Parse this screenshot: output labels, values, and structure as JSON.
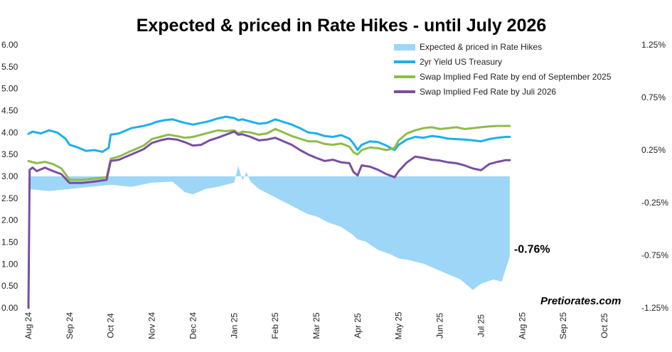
{
  "chart_data": {
    "type": "line",
    "title": "Expected & priced in Rate Hikes - until July 2026",
    "x_ticks": [
      "Aug 24",
      "Sep 24",
      "Oct 24",
      "Nov 24",
      "Dec 24",
      "Jan 25",
      "Feb 25",
      "Mar 25",
      "Apr 25",
      "May 25",
      "Jun 25",
      "Jul 25",
      "Aug 25",
      "Sep 25",
      "Oct 25"
    ],
    "y_left_ticks": [
      "6.00",
      "5.50",
      "5.00",
      "4.50",
      "4.00",
      "3.50",
      "3.00",
      "2.50",
      "2.00",
      "1.50",
      "1.00",
      "0.50",
      "0.00"
    ],
    "y_left_range": [
      0,
      6
    ],
    "y_right_ticks": [
      "1.25%",
      "0.75%",
      "0.25%",
      "-0.25%",
      "-0.75%",
      "-1.25%"
    ],
    "y_right_range": [
      -1.25,
      1.25
    ],
    "x_index_range": [
      0,
      14
    ],
    "legend": [
      {
        "name": "Expected & priced in Rate Hikes",
        "color": "#9dd6f7",
        "kind": "area"
      },
      {
        "name": "2yr Yield US Treasury",
        "color": "#1bb1e7",
        "kind": "line"
      },
      {
        "name": "Swap Implied Fed Rate by end of September 2025",
        "color": "#8fbc4a",
        "kind": "line"
      },
      {
        "name": "Swap Implied Fed Rate by Juli 2026",
        "color": "#7a4ea0",
        "kind": "line"
      }
    ],
    "series": [
      {
        "name": "2yr Yield US Treasury",
        "axis": "left",
        "points": [
          [
            0,
            3.97
          ],
          [
            0.1,
            4.02
          ],
          [
            0.3,
            3.98
          ],
          [
            0.5,
            4.05
          ],
          [
            0.7,
            4.0
          ],
          [
            0.9,
            3.86
          ],
          [
            1.0,
            3.72
          ],
          [
            1.2,
            3.66
          ],
          [
            1.4,
            3.58
          ],
          [
            1.6,
            3.6
          ],
          [
            1.8,
            3.56
          ],
          [
            1.95,
            3.65
          ],
          [
            2.0,
            3.95
          ],
          [
            2.2,
            3.98
          ],
          [
            2.5,
            4.1
          ],
          [
            2.8,
            4.15
          ],
          [
            3.0,
            4.2
          ],
          [
            3.1,
            4.24
          ],
          [
            3.3,
            4.28
          ],
          [
            3.5,
            4.3
          ],
          [
            3.8,
            4.22
          ],
          [
            4.0,
            4.18
          ],
          [
            4.2,
            4.22
          ],
          [
            4.4,
            4.26
          ],
          [
            4.6,
            4.32
          ],
          [
            4.8,
            4.36
          ],
          [
            5.0,
            4.33
          ],
          [
            5.1,
            4.28
          ],
          [
            5.2,
            4.3
          ],
          [
            5.4,
            4.25
          ],
          [
            5.6,
            4.2
          ],
          [
            5.8,
            4.22
          ],
          [
            6.0,
            4.3
          ],
          [
            6.2,
            4.24
          ],
          [
            6.4,
            4.18
          ],
          [
            6.6,
            4.1
          ],
          [
            6.8,
            4.0
          ],
          [
            7.0,
            3.98
          ],
          [
            7.2,
            3.92
          ],
          [
            7.4,
            3.9
          ],
          [
            7.6,
            3.94
          ],
          [
            7.8,
            3.86
          ],
          [
            7.9,
            3.75
          ],
          [
            8.0,
            3.6
          ],
          [
            8.1,
            3.72
          ],
          [
            8.3,
            3.8
          ],
          [
            8.5,
            3.78
          ],
          [
            8.7,
            3.7
          ],
          [
            8.9,
            3.6
          ],
          [
            9.0,
            3.72
          ],
          [
            9.2,
            3.84
          ],
          [
            9.4,
            3.9
          ],
          [
            9.6,
            3.88
          ],
          [
            9.8,
            3.92
          ],
          [
            10.0,
            3.9
          ],
          [
            10.2,
            3.86
          ],
          [
            10.4,
            3.85
          ],
          [
            10.6,
            3.84
          ],
          [
            10.8,
            3.82
          ],
          [
            11.0,
            3.8
          ],
          [
            11.2,
            3.85
          ],
          [
            11.4,
            3.88
          ],
          [
            11.6,
            3.9
          ],
          [
            11.7,
            3.9
          ]
        ]
      },
      {
        "name": "Swap Implied Fed Rate by end of September 2025",
        "axis": "left",
        "points": [
          [
            0,
            3.35
          ],
          [
            0.2,
            3.3
          ],
          [
            0.4,
            3.33
          ],
          [
            0.6,
            3.28
          ],
          [
            0.8,
            3.18
          ],
          [
            0.9,
            3.05
          ],
          [
            1.0,
            2.92
          ],
          [
            1.3,
            2.92
          ],
          [
            1.6,
            2.95
          ],
          [
            1.9,
            2.98
          ],
          [
            2.0,
            3.4
          ],
          [
            2.2,
            3.45
          ],
          [
            2.5,
            3.58
          ],
          [
            2.8,
            3.7
          ],
          [
            3.0,
            3.85
          ],
          [
            3.2,
            3.9
          ],
          [
            3.4,
            3.95
          ],
          [
            3.6,
            3.92
          ],
          [
            3.8,
            3.88
          ],
          [
            4.0,
            3.9
          ],
          [
            4.2,
            3.95
          ],
          [
            4.4,
            4.0
          ],
          [
            4.6,
            4.05
          ],
          [
            4.8,
            4.03
          ],
          [
            5.0,
            4.05
          ],
          [
            5.1,
            3.98
          ],
          [
            5.2,
            4.02
          ],
          [
            5.4,
            4.0
          ],
          [
            5.6,
            3.95
          ],
          [
            5.8,
            3.98
          ],
          [
            6.0,
            4.08
          ],
          [
            6.2,
            4.0
          ],
          [
            6.4,
            3.92
          ],
          [
            6.6,
            3.86
          ],
          [
            6.8,
            3.8
          ],
          [
            7.0,
            3.8
          ],
          [
            7.2,
            3.74
          ],
          [
            7.4,
            3.72
          ],
          [
            7.6,
            3.75
          ],
          [
            7.8,
            3.68
          ],
          [
            7.9,
            3.55
          ],
          [
            8.0,
            3.5
          ],
          [
            8.1,
            3.6
          ],
          [
            8.3,
            3.66
          ],
          [
            8.5,
            3.64
          ],
          [
            8.7,
            3.6
          ],
          [
            8.9,
            3.65
          ],
          [
            9.0,
            3.82
          ],
          [
            9.2,
            3.98
          ],
          [
            9.4,
            4.05
          ],
          [
            9.6,
            4.1
          ],
          [
            9.8,
            4.12
          ],
          [
            10.0,
            4.08
          ],
          [
            10.2,
            4.1
          ],
          [
            10.4,
            4.12
          ],
          [
            10.6,
            4.08
          ],
          [
            10.8,
            4.1
          ],
          [
            11.0,
            4.12
          ],
          [
            11.2,
            4.14
          ],
          [
            11.4,
            4.15
          ],
          [
            11.6,
            4.15
          ],
          [
            11.7,
            4.15
          ]
        ]
      },
      {
        "name": "Swap Implied Fed Rate by Juli 2026",
        "axis": "left",
        "points": [
          [
            0,
            0.0
          ],
          [
            0.03,
            3.15
          ],
          [
            0.1,
            3.2
          ],
          [
            0.2,
            3.12
          ],
          [
            0.4,
            3.2
          ],
          [
            0.6,
            3.12
          ],
          [
            0.8,
            3.05
          ],
          [
            0.9,
            2.95
          ],
          [
            1.0,
            2.85
          ],
          [
            1.3,
            2.85
          ],
          [
            1.6,
            2.88
          ],
          [
            1.9,
            2.92
          ],
          [
            2.0,
            3.35
          ],
          [
            2.2,
            3.38
          ],
          [
            2.5,
            3.5
          ],
          [
            2.8,
            3.62
          ],
          [
            3.0,
            3.76
          ],
          [
            3.2,
            3.82
          ],
          [
            3.4,
            3.86
          ],
          [
            3.6,
            3.84
          ],
          [
            3.8,
            3.78
          ],
          [
            4.0,
            3.7
          ],
          [
            4.2,
            3.72
          ],
          [
            4.4,
            3.82
          ],
          [
            4.6,
            3.88
          ],
          [
            4.8,
            3.95
          ],
          [
            5.0,
            4.02
          ],
          [
            5.1,
            3.95
          ],
          [
            5.2,
            3.96
          ],
          [
            5.4,
            3.9
          ],
          [
            5.6,
            3.82
          ],
          [
            5.8,
            3.84
          ],
          [
            6.0,
            3.88
          ],
          [
            6.2,
            3.8
          ],
          [
            6.4,
            3.72
          ],
          [
            6.6,
            3.6
          ],
          [
            6.8,
            3.5
          ],
          [
            7.0,
            3.42
          ],
          [
            7.2,
            3.35
          ],
          [
            7.4,
            3.38
          ],
          [
            7.6,
            3.32
          ],
          [
            7.8,
            3.3
          ],
          [
            7.9,
            3.1
          ],
          [
            8.0,
            3.02
          ],
          [
            8.1,
            3.25
          ],
          [
            8.3,
            3.22
          ],
          [
            8.5,
            3.15
          ],
          [
            8.7,
            3.05
          ],
          [
            8.9,
            2.98
          ],
          [
            9.0,
            3.12
          ],
          [
            9.2,
            3.32
          ],
          [
            9.4,
            3.45
          ],
          [
            9.6,
            3.42
          ],
          [
            9.8,
            3.38
          ],
          [
            10.0,
            3.36
          ],
          [
            10.2,
            3.32
          ],
          [
            10.4,
            3.3
          ],
          [
            10.6,
            3.25
          ],
          [
            10.8,
            3.18
          ],
          [
            11.0,
            3.14
          ],
          [
            11.2,
            3.28
          ],
          [
            11.4,
            3.33
          ],
          [
            11.6,
            3.37
          ],
          [
            11.7,
            3.37
          ]
        ]
      },
      {
        "name": "Expected & priced in Rate Hikes",
        "axis": "right",
        "baseline": 0,
        "points": [
          [
            0,
            -0.12
          ],
          [
            0.5,
            -0.14
          ],
          [
            1.0,
            -0.12
          ],
          [
            1.5,
            -0.1
          ],
          [
            2.0,
            -0.08
          ],
          [
            2.5,
            -0.1
          ],
          [
            3.0,
            -0.06
          ],
          [
            3.5,
            -0.05
          ],
          [
            3.8,
            -0.15
          ],
          [
            4.0,
            -0.17
          ],
          [
            4.3,
            -0.12
          ],
          [
            4.6,
            -0.1
          ],
          [
            5.0,
            -0.06
          ],
          [
            5.1,
            0.1
          ],
          [
            5.2,
            -0.04
          ],
          [
            5.3,
            0.04
          ],
          [
            5.4,
            -0.05
          ],
          [
            5.6,
            -0.12
          ],
          [
            5.9,
            -0.18
          ],
          [
            6.2,
            -0.24
          ],
          [
            6.5,
            -0.3
          ],
          [
            6.8,
            -0.36
          ],
          [
            7.0,
            -0.38
          ],
          [
            7.3,
            -0.44
          ],
          [
            7.6,
            -0.48
          ],
          [
            7.9,
            -0.56
          ],
          [
            8.0,
            -0.6
          ],
          [
            8.2,
            -0.62
          ],
          [
            8.5,
            -0.7
          ],
          [
            8.8,
            -0.74
          ],
          [
            9.0,
            -0.78
          ],
          [
            9.3,
            -0.8
          ],
          [
            9.6,
            -0.83
          ],
          [
            9.9,
            -0.88
          ],
          [
            10.2,
            -0.93
          ],
          [
            10.5,
            -0.98
          ],
          [
            10.8,
            -1.08
          ],
          [
            11.0,
            -1.02
          ],
          [
            11.3,
            -0.98
          ],
          [
            11.5,
            -1.0
          ],
          [
            11.7,
            -0.76
          ]
        ]
      }
    ],
    "annotations": {
      "last_value_label": "-0.76%",
      "watermark": "Pretiorates.com"
    }
  }
}
